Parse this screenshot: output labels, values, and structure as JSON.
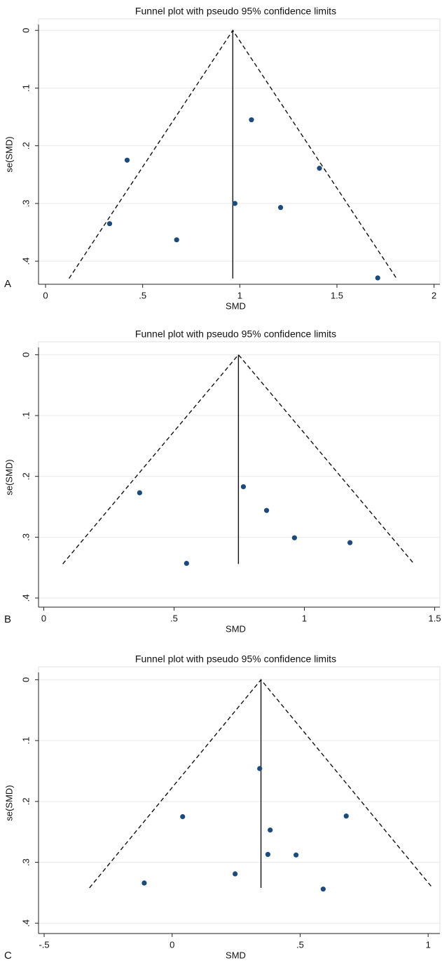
{
  "chart_data": [
    {
      "type": "scatter",
      "panel_label": "A",
      "title": "Funnel plot with pseudo 95% confidence limits",
      "x_label": "SMD",
      "y_label": "se(SMD)",
      "color": "#1b4a7c",
      "grid": true,
      "xlim": [
        -0.036,
        2.03
      ],
      "ylim": [
        -0.01,
        0.44
      ],
      "y_reversed": true,
      "xticks": [
        0,
        {
          "value": 0.5,
          "label": ".5"
        },
        1,
        1.5,
        2
      ],
      "yticks": [
        0,
        {
          "value": 0.1,
          "label": ".1"
        },
        {
          "value": 0.2,
          "label": ".2"
        },
        {
          "value": 0.3,
          "label": ".3"
        },
        {
          "value": 0.4,
          "label": ".4"
        }
      ],
      "x": [
        0.42,
        1.06,
        1.41,
        0.33,
        0.975,
        1.21,
        0.675,
        1.71
      ],
      "values": [
        0.225,
        0.155,
        0.239,
        0.335,
        0.3,
        0.307,
        0.363,
        0.429
      ],
      "reference": {
        "x": [
          0.964,
          0.964
        ],
        "y": [
          0,
          0.43
        ]
      },
      "funnel": {
        "x": [
          0.121,
          0.964,
          1.807
        ],
        "y": [
          0.43,
          0,
          0.43
        ]
      }
    },
    {
      "type": "scatter",
      "panel_label": "B",
      "title": "Funnel plot with pseudo 95% confidence limits",
      "x_label": "SMD",
      "y_label": "se(SMD)",
      "color": "#1b4a7c",
      "grid": true,
      "xlim": [
        -0.02,
        1.52
      ],
      "ylim": [
        -0.012,
        0.415
      ],
      "y_reversed": true,
      "xticks": [
        0,
        {
          "value": 0.5,
          "label": ".5"
        },
        1,
        1.5
      ],
      "yticks": [
        0,
        {
          "value": 0.1,
          "label": ".1"
        },
        {
          "value": 0.2,
          "label": ".2"
        },
        {
          "value": 0.3,
          "label": ".3"
        },
        {
          "value": 0.4,
          "label": ".4"
        }
      ],
      "x": [
        0.368,
        0.766,
        0.855,
        0.962,
        1.175,
        0.548
      ],
      "values": [
        0.227,
        0.217,
        0.256,
        0.301,
        0.309,
        0.343
      ],
      "reference": {
        "x": [
          0.747,
          0.747
        ],
        "y": [
          0,
          0.344
        ]
      },
      "funnel": {
        "x": [
          0.073,
          0.747,
          1.421
        ],
        "y": [
          0.344,
          0,
          0.344
        ]
      }
    },
    {
      "type": "scatter",
      "panel_label": "C",
      "title": "Funnel plot with pseudo 95% confidence limits",
      "x_label": "SMD",
      "y_label": "se(SMD)",
      "color": "#1b4a7c",
      "grid": true,
      "xlim": [
        -0.522,
        1.046
      ],
      "ylim": [
        -0.012,
        0.417
      ],
      "y_reversed": true,
      "xticks": [
        {
          "value": -0.5,
          "label": "-.5"
        },
        0,
        {
          "value": 0.5,
          "label": ".5"
        },
        1
      ],
      "yticks": [
        0,
        {
          "value": 0.1,
          "label": ".1"
        },
        {
          "value": 0.2,
          "label": ".2"
        },
        {
          "value": 0.3,
          "label": ".3"
        },
        {
          "value": 0.4,
          "label": ".4"
        }
      ],
      "x": [
        0.041,
        0.342,
        0.68,
        0.383,
        0.374,
        0.484,
        0.246,
        -0.109,
        0.59
      ],
      "values": [
        0.225,
        0.146,
        0.224,
        0.247,
        0.287,
        0.288,
        0.319,
        0.334,
        0.344
      ],
      "reference": {
        "x": [
          0.347,
          0.347
        ],
        "y": [
          0,
          0.342
        ]
      },
      "funnel": {
        "x": [
          -0.323,
          0.347,
          1.017
        ],
        "y": [
          0.342,
          0,
          0.342
        ]
      }
    }
  ]
}
